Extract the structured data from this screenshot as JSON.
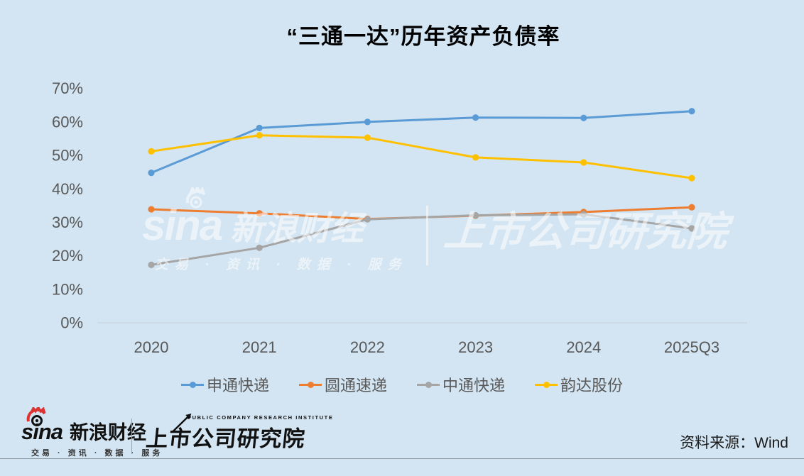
{
  "title": "“三通一达”历年资产负债率",
  "chart_data": {
    "type": "line",
    "categories": [
      "2020",
      "2021",
      "2022",
      "2023",
      "2024",
      "2025Q3"
    ],
    "series": [
      {
        "name": "申通快递",
        "color": "#5B9BD5",
        "values": [
          44.8,
          58.2,
          60.0,
          61.3,
          61.2,
          63.2
        ]
      },
      {
        "name": "圆通速递",
        "color": "#ED7D31",
        "values": [
          33.9,
          32.7,
          31.0,
          32.0,
          33.1,
          34.5
        ]
      },
      {
        "name": "中通快递",
        "color": "#A5A5A5",
        "values": [
          17.3,
          22.4,
          30.9,
          32.1,
          32.4,
          28.2
        ]
      },
      {
        "name": "韵达股份",
        "color": "#FFC000",
        "values": [
          51.2,
          56.0,
          55.3,
          49.4,
          47.9,
          43.2
        ]
      }
    ],
    "ylim": [
      0,
      70
    ],
    "yticks": [
      0,
      10,
      20,
      30,
      40,
      50,
      60,
      70
    ],
    "ytick_suffix": "%",
    "grid": false,
    "legend_position": "bottom",
    "axis_label_color": "#595959",
    "axis_line_color": "#c9d4dd",
    "background_color": "#d3e5f2"
  },
  "watermark": {
    "sina_text": "sina",
    "brand": "新浪财经",
    "tagline": "交易 · 资讯 · 数据 · 服务",
    "institute": "上市公司研究院"
  },
  "footer": {
    "sina_text": "sina",
    "brand": "新浪财经",
    "tagline": "交易 · 资讯 · 数据 · 服务",
    "institute_en": "PUBLIC COMPANY RESEARCH INSTITUTE",
    "institute": "上市公司研究院",
    "source": "资料来源：Wind"
  }
}
